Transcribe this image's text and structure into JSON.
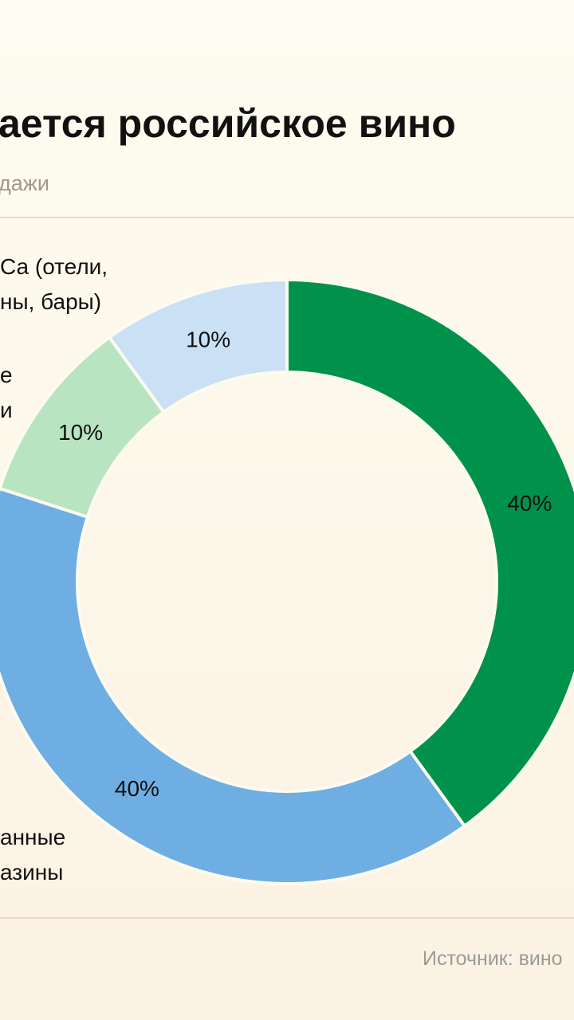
{
  "chart_data": {
    "type": "pie",
    "title": "ается российское вино",
    "subtitle": "дажи",
    "source": "Источник: вино",
    "categories": [
      null,
      "анные\nазины",
      "е\nи",
      "Са (отели,\nны, бары)"
    ],
    "values": [
      40,
      40,
      10,
      10
    ],
    "value_labels": [
      "40%",
      "40%",
      "10%",
      "10%"
    ],
    "colors": [
      "#00924a",
      "#6eaee3",
      "#b9e4c1",
      "#cae0f5"
    ]
  }
}
